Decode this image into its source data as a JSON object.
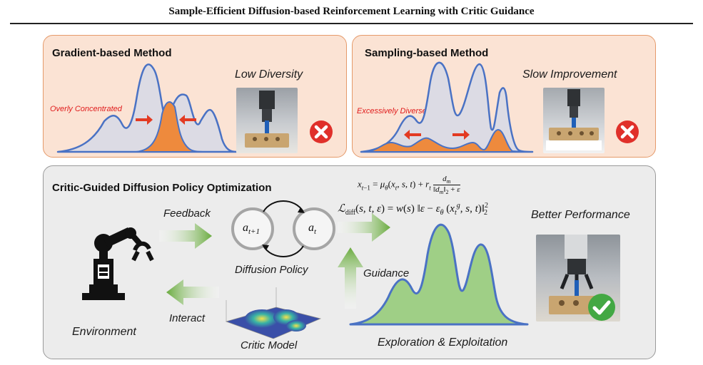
{
  "title": "Sample-Efficient Diffusion-based Reinforcement Learning with Critic Guidance",
  "gradient_panel": {
    "title": "Gradient-based Method",
    "label_issue": "Low Diversity",
    "label_distribution": "Overly Concentrated"
  },
  "sampling_panel": {
    "title": "Sampling-based Method",
    "label_issue": "Slow Improvement",
    "label_distribution": "Excessively Diverse"
  },
  "cgdpo_panel": {
    "title": "Critic-Guided Diffusion Policy Optimization",
    "feedback": "Feedback",
    "interact": "Interact",
    "environment": "Environment",
    "diffusion_policy": "Diffusion Policy",
    "critic_model": "Critic Model",
    "guidance": "Guidance",
    "better_performance": "Better Performance",
    "exploration": "Exploration & Exploitation",
    "node_next": "a",
    "node_next_sub": "t+1",
    "node_cur": "a",
    "node_cur_sub": "t"
  },
  "colors": {
    "peach_bg": "#fbe3d4",
    "grey_bg": "#ececec",
    "curve_blue": "#4a72c4",
    "fill_orange": "#ee8a3d",
    "fill_green": "#9fcf86",
    "arrow_green": "#6aab3f",
    "x_red": "#e0302a",
    "check_green": "#43a843"
  },
  "icons": [
    "x-mark-icon",
    "check-mark-icon",
    "robot-arm-icon"
  ]
}
